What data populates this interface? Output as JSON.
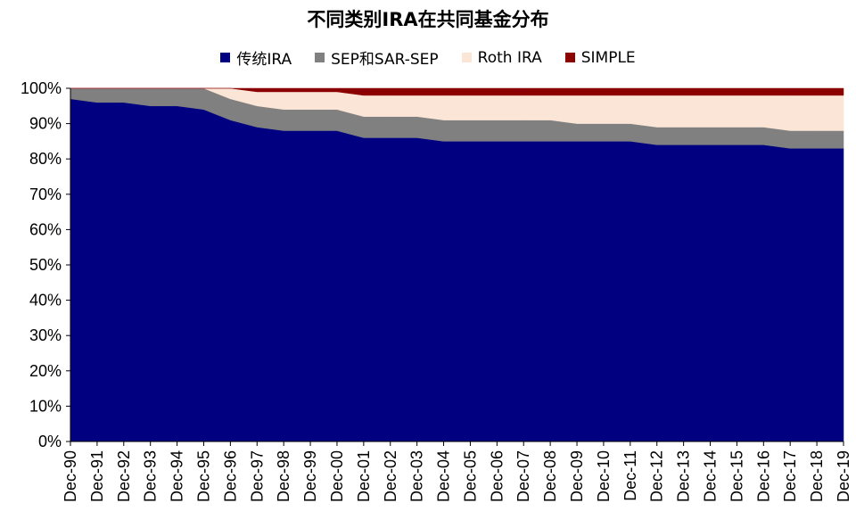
{
  "chart_data": {
    "type": "area",
    "stacked": true,
    "title": "不同类别IRA在共同基金分布",
    "xlabel": "",
    "ylabel": "",
    "ylim": [
      0,
      100
    ],
    "y_ticks": [
      "0%",
      "10%",
      "20%",
      "30%",
      "40%",
      "50%",
      "60%",
      "70%",
      "80%",
      "90%",
      "100%"
    ],
    "categories": [
      "Dec-90",
      "Dec-91",
      "Dec-92",
      "Dec-93",
      "Dec-94",
      "Dec-95",
      "Dec-96",
      "Dec-97",
      "Dec-98",
      "Dec-99",
      "Dec-00",
      "Dec-01",
      "Dec-02",
      "Dec-03",
      "Dec-04",
      "Dec-05",
      "Dec-06",
      "Dec-07",
      "Dec-08",
      "Dec-09",
      "Dec-10",
      "Dec-11",
      "Dec-12",
      "Dec-13",
      "Dec-14",
      "Dec-15",
      "Dec-16",
      "Dec-17",
      "Dec-18",
      "Dec-19"
    ],
    "legend_position": "top",
    "grid": false,
    "series": [
      {
        "name": "传统IRA",
        "color": "#000080",
        "values": [
          97,
          96,
          96,
          95,
          95,
          94,
          91,
          89,
          88,
          88,
          88,
          86,
          86,
          86,
          85,
          85,
          85,
          85,
          85,
          85,
          85,
          85,
          84,
          84,
          84,
          84,
          84,
          83,
          83,
          83
        ]
      },
      {
        "name": "SEP和SAR-SEP",
        "color": "#808080",
        "values": [
          3,
          4,
          4,
          5,
          5,
          6,
          6,
          6,
          6,
          6,
          6,
          6,
          6,
          6,
          6,
          6,
          6,
          6,
          6,
          5,
          5,
          5,
          5,
          5,
          5,
          5,
          5,
          5,
          5,
          5
        ]
      },
      {
        "name": "Roth IRA",
        "color": "#fbe5d6",
        "values": [
          0,
          0,
          0,
          0,
          0,
          0,
          3,
          4,
          5,
          5,
          5,
          6,
          6,
          6,
          7,
          7,
          7,
          7,
          7,
          8,
          8,
          8,
          9,
          9,
          9,
          9,
          9,
          10,
          10,
          10
        ]
      },
      {
        "name": "SIMPLE",
        "color": "#8b0000",
        "values": [
          0,
          0,
          0,
          0,
          0,
          0,
          0,
          1,
          1,
          1,
          1,
          2,
          2,
          2,
          2,
          2,
          2,
          2,
          2,
          2,
          2,
          2,
          2,
          2,
          2,
          2,
          2,
          2,
          2,
          2
        ]
      }
    ]
  }
}
